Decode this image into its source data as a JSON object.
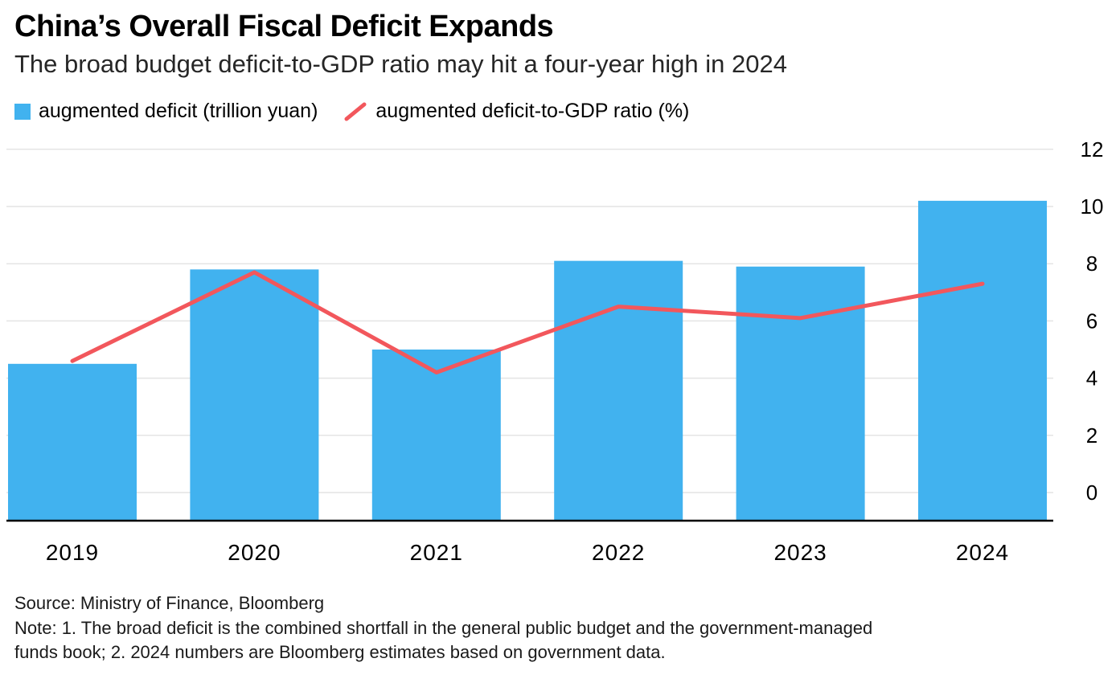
{
  "header": {
    "title": "China’s Overall Fiscal Deficit Expands",
    "subtitle": "The broad budget deficit-to-GDP ratio may hit a four-year high in 2024"
  },
  "legend": {
    "bar_label": "augmented deficit (trillion yuan)",
    "line_label": "augmented deficit-to-GDP ratio (%)"
  },
  "colors": {
    "bar": "#41b2ef",
    "line": "#f2575c",
    "grid": "#e4e4e4",
    "axis": "#000000"
  },
  "chart_data": {
    "type": "bar",
    "subtype": "bar+line combo",
    "categories": [
      "2019",
      "2020",
      "2021",
      "2022",
      "2023",
      "2024"
    ],
    "series": [
      {
        "name": "augmented deficit (trillion yuan)",
        "type": "bar",
        "values": [
          4.5,
          7.8,
          5.0,
          8.1,
          7.9,
          10.2
        ]
      },
      {
        "name": "augmented deficit-to-GDP ratio (%)",
        "type": "line",
        "values": [
          4.6,
          7.7,
          4.2,
          6.5,
          6.1,
          7.3
        ]
      }
    ],
    "title": "China’s Overall Fiscal Deficit Expands",
    "xlabel": "",
    "ylabel": "",
    "ylim": [
      0,
      12
    ],
    "yticks": [
      0,
      2,
      4,
      6,
      8,
      10,
      12
    ],
    "y_axis_side": "right",
    "grid": true,
    "legend_position": "top"
  },
  "footer": {
    "source": "Source: Ministry of Finance, Bloomberg",
    "note": "Note: 1. The broad deficit is the combined shortfall in the general public budget and the government-managed funds book; 2. 2024 numbers are Bloomberg estimates based on government data."
  }
}
